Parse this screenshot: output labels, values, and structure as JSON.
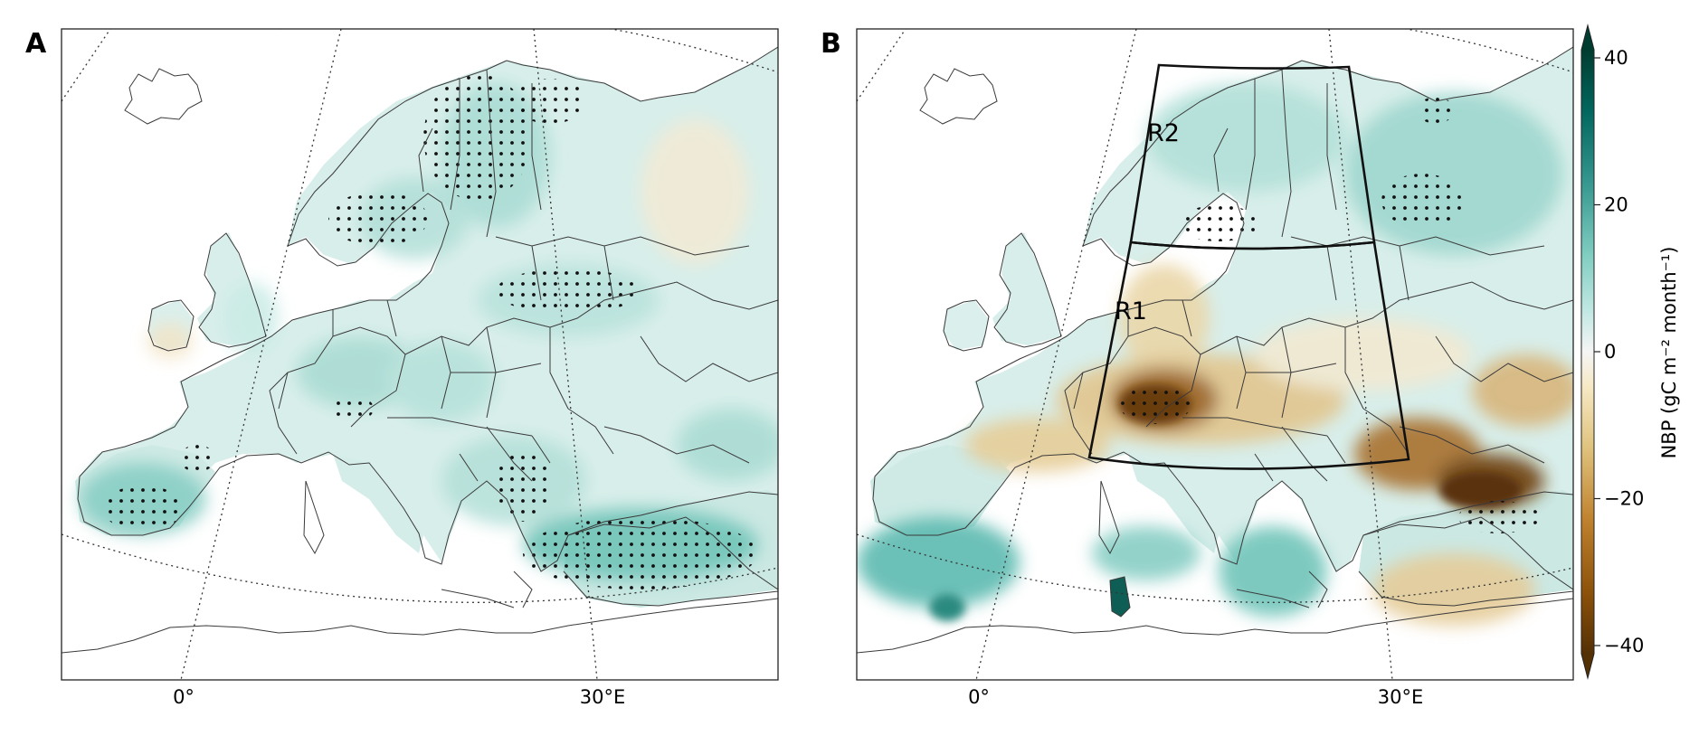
{
  "panels": [
    {
      "letter": "A",
      "lon_labels": [
        "0°",
        "30°E"
      ]
    },
    {
      "letter": "B",
      "lon_labels": [
        "0°",
        "30°E"
      ],
      "regions": [
        "R2",
        "R1"
      ]
    }
  ],
  "colorbar": {
    "label": "NBP (gC m⁻² month⁻¹)",
    "ticks": [
      "40",
      "20",
      "0",
      "−20",
      "−40"
    ],
    "tick_values": [
      40,
      20,
      0,
      -20,
      -40
    ],
    "range": [
      -40,
      40
    ],
    "colormap": [
      "#543005",
      "#8c510a",
      "#bf812d",
      "#dfc27d",
      "#f6e8c3",
      "#f5f5f5",
      "#c7eae5",
      "#80cdc1",
      "#35978f",
      "#01665e",
      "#003c30"
    ],
    "extend": "both"
  }
}
